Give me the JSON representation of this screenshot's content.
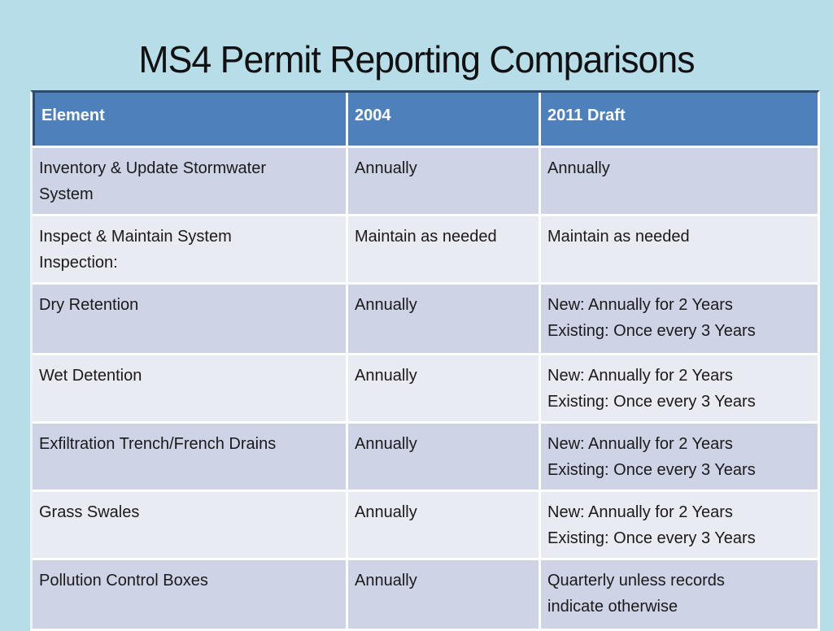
{
  "slide": {
    "title": "MS4 Permit Reporting Comparisons",
    "colors": {
      "background": "#b7dde8",
      "header_fill": "#4e81bc",
      "header_border": "#2c4b6e",
      "band_dark": "#ced3e6",
      "band_light": "#e9ebf3",
      "separator": "#fbfdfe",
      "header_text": "#ffffff",
      "body_text": "#1a1a1a"
    }
  },
  "table": {
    "columns": [
      "Element",
      "2004",
      "2011 Draft"
    ],
    "rows": [
      {
        "band": "dark",
        "cells": [
          {
            "lines": [
              "Inventory & Update Stormwater",
              "System"
            ]
          },
          {
            "lines": [
              "Annually"
            ]
          },
          {
            "lines": [
              "Annually"
            ]
          }
        ]
      },
      {
        "band": "light",
        "cells": [
          {
            "lines": [
              "Inspect & Maintain System",
              "Inspection:"
            ]
          },
          {
            "lines": [
              "Maintain as needed"
            ]
          },
          {
            "lines": [
              "Maintain as needed"
            ]
          }
        ]
      },
      {
        "band": "dark",
        "cells": [
          {
            "lines": [
              "Dry Retention"
            ]
          },
          {
            "lines": [
              "Annually"
            ]
          },
          {
            "lines": [
              "New: Annually for 2 Years",
              "Existing: Once every 3 Years"
            ]
          }
        ]
      },
      {
        "band": "light",
        "cells": [
          {
            "lines": [
              "Wet Detention"
            ]
          },
          {
            "lines": [
              "Annually"
            ]
          },
          {
            "lines": [
              "New: Annually for 2 Years",
              "Existing: Once every 3 Years"
            ]
          }
        ]
      },
      {
        "band": "dark",
        "cells": [
          {
            "lines": [
              "Exfiltration Trench/French Drains"
            ]
          },
          {
            "lines": [
              "Annually"
            ]
          },
          {
            "lines": [
              "New: Annually for 2 Years",
              "Existing: Once every 3 Years"
            ]
          }
        ]
      },
      {
        "band": "light",
        "cells": [
          {
            "lines": [
              "Grass Swales"
            ]
          },
          {
            "lines": [
              "Annually"
            ]
          },
          {
            "lines": [
              "New: Annually for 2 Years",
              "Existing: Once every 3 Years"
            ]
          }
        ]
      },
      {
        "band": "dark",
        "cells": [
          {
            "lines": [
              "Pollution Control Boxes"
            ]
          },
          {
            "lines": [
              "Annually"
            ]
          },
          {
            "lines": [
              "Quarterly unless records",
              "indicate otherwise"
            ]
          }
        ]
      }
    ]
  }
}
